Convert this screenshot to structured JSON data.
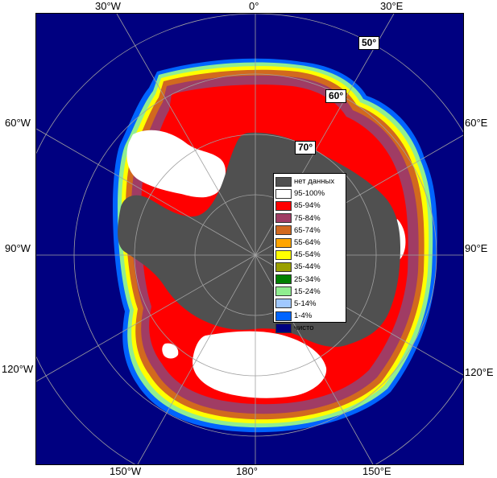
{
  "map": {
    "lon_labels": {
      "top_left": "30°W",
      "top_center": "0°",
      "top_right": "30°E",
      "left_upper": "60°W",
      "left_middle": "90°W",
      "left_lower": "120°W",
      "right_upper": "60°E",
      "right_middle": "90°E",
      "right_lower": "120°E",
      "bottom_left": "150°W",
      "bottom_center": "180°",
      "bottom_right": "150°E"
    },
    "lat_labels": [
      "50°",
      "60°",
      "70°"
    ],
    "colors": {
      "ocean": "#000080",
      "land": "#505050",
      "grid": "#a0a0a0"
    }
  },
  "legend": {
    "items": [
      {
        "label": "нет данных",
        "color": "#505050"
      },
      {
        "label": "95-100%",
        "color": "#ffffff"
      },
      {
        "label": "85-94%",
        "color": "#ff0000"
      },
      {
        "label": "75-84%",
        "color": "#a03c64"
      },
      {
        "label": "65-74%",
        "color": "#d2691e"
      },
      {
        "label": "55-64%",
        "color": "#ffa500"
      },
      {
        "label": "45-54%",
        "color": "#ffff00"
      },
      {
        "label": "35-44%",
        "color": "#9aa000"
      },
      {
        "label": "25-34%",
        "color": "#008000"
      },
      {
        "label": "15-24%",
        "color": "#90ee90"
      },
      {
        "label": "5-14%",
        "color": "#a0c8ff"
      },
      {
        "label": "1-4%",
        "color": "#0064ff"
      },
      {
        "label": "чисто",
        "color": "#000080"
      }
    ]
  }
}
